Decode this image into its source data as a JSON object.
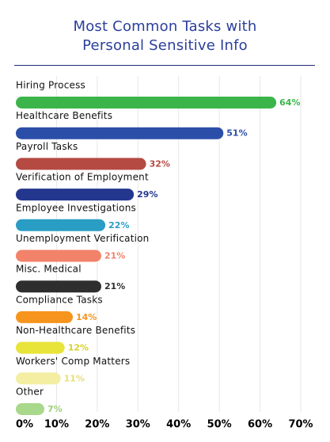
{
  "title_lines": [
    "Most Common Tasks with",
    "Personal Sensitive Info"
  ],
  "chart_data": {
    "type": "bar",
    "orientation": "horizontal",
    "title": "Most Common Tasks with Personal Sensitive Info",
    "xlabel": "",
    "ylabel": "",
    "xlim": [
      0,
      70
    ],
    "x_ticks": [
      "0%",
      "10%",
      "20%",
      "30%",
      "40%",
      "50%",
      "60%",
      "70%"
    ],
    "grid": true,
    "categories": [
      "Hiring Process",
      "Healthcare Benefits",
      "Payroll Tasks",
      "Verification of Employment",
      "Employee Investigations",
      "Unemployment Verification",
      "Misc. Medical",
      "Compliance Tasks",
      "Non-Healthcare Benefits",
      "Workers' Comp Matters",
      "Other"
    ],
    "values": [
      64,
      51,
      32,
      29,
      22,
      21,
      21,
      14,
      12,
      11,
      7
    ],
    "value_labels": [
      "64%",
      "51%",
      "32%",
      "29%",
      "22%",
      "21%",
      "21%",
      "14%",
      "12%",
      "11%",
      "7%"
    ],
    "colors": [
      "#3bb54a",
      "#2b4fa8",
      "#b54a43",
      "#23378f",
      "#2a9dc4",
      "#f2826a",
      "#2e2e2e",
      "#f7941d",
      "#e8e43a",
      "#f3eea2",
      "#a8d88a"
    ],
    "label_colors": [
      "#3bb54a",
      "#2b4fa8",
      "#b54a43",
      "#23378f",
      "#2a9dc4",
      "#f2826a",
      "#2e2e2e",
      "#f7941d",
      "#d9d030",
      "#e8de74",
      "#9ccf78"
    ]
  }
}
